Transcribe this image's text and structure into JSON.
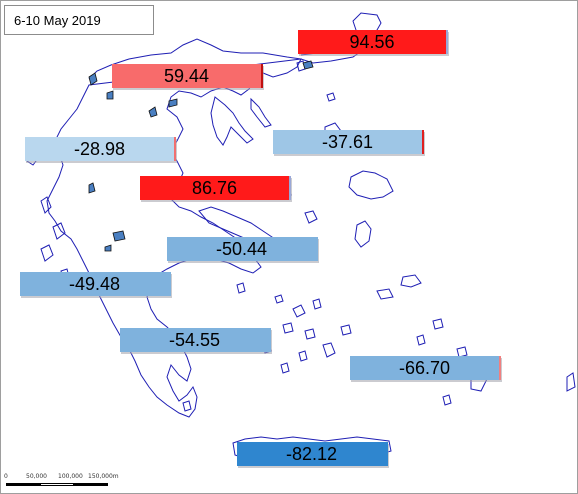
{
  "title": "6-10 May 2019",
  "colors": {
    "coastline": "#1f1fb4",
    "island_fill": "#4a7fc1",
    "strong_positive": "#ff1a1a",
    "positive": "#f86b6b",
    "light_negative": "#b9d7ee",
    "negative": "#9ec6e6",
    "mid_negative": "#7fb2dd",
    "strong_negative": "#2f86cf"
  },
  "regions": [
    {
      "id": "thrace-east",
      "value": "94.56",
      "color": "#ff1a1a",
      "accent": "#9aa8d8"
    },
    {
      "id": "macedonia-west",
      "value": "59.44",
      "color": "#f86b6b",
      "accent": "#c01010"
    },
    {
      "id": "epirus",
      "value": "-28.98",
      "color": "#b9d7ee",
      "accent": "#f07070"
    },
    {
      "id": "macedonia-central",
      "value": "-37.61",
      "color": "#9ec6e6",
      "accent": "#e02020"
    },
    {
      "id": "thessaly",
      "value": "86.76",
      "color": "#ff1a1a",
      "accent": "#9aa8d8"
    },
    {
      "id": "central-greece",
      "value": "-50.44",
      "color": "#7fb2dd",
      "accent": "#7fb2dd"
    },
    {
      "id": "western-greece",
      "value": "-49.48",
      "color": "#7fb2dd",
      "accent": "#7fb2dd"
    },
    {
      "id": "peloponnese",
      "value": "-54.55",
      "color": "#7fb2dd",
      "accent": "#7fb2dd"
    },
    {
      "id": "dodecanese",
      "value": "-66.70",
      "color": "#7fb2dd",
      "accent": "#f08080"
    },
    {
      "id": "crete",
      "value": "-82.12",
      "color": "#2f86cf",
      "accent": "#2f86cf"
    }
  ],
  "scale_bar": {
    "labels": [
      "0",
      "50,000",
      "100,000",
      "150,000m"
    ]
  }
}
